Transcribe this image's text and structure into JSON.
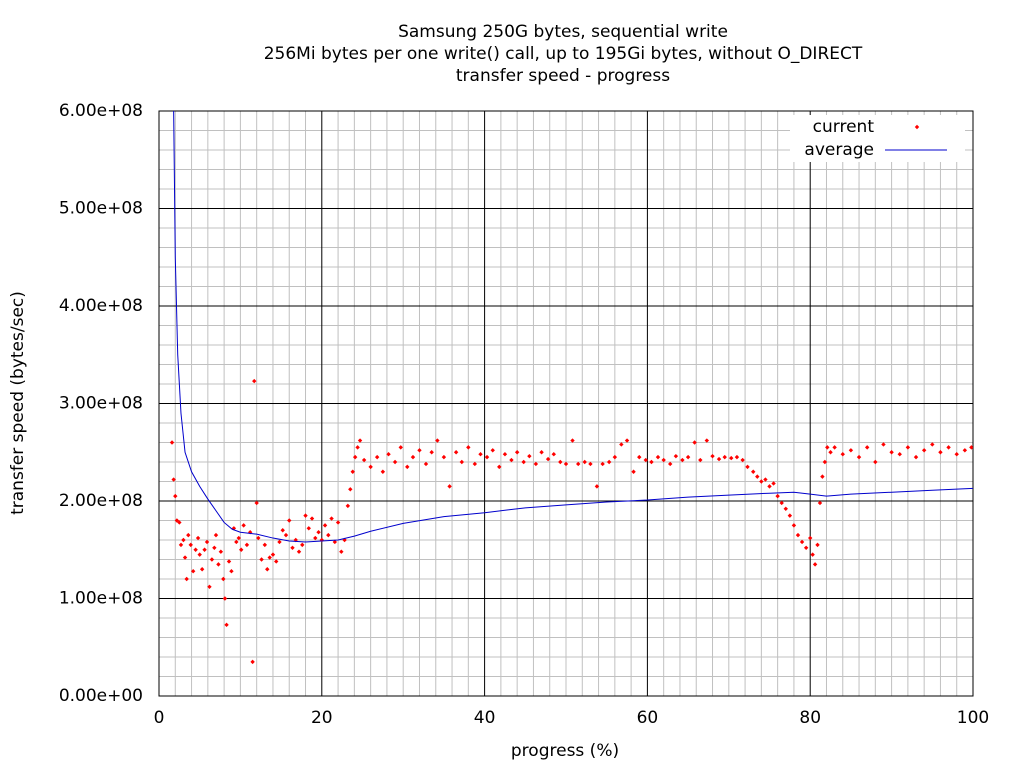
{
  "chart_data": {
    "type": "scatter",
    "title": [
      "Samsung 250G bytes, sequential write",
      "256Mi bytes per one write() call, up to 195Gi bytes, without O_DIRECT",
      "transfer speed - progress"
    ],
    "xlabel": "progress (%)",
    "ylabel": "transfer speed (bytes/sec)",
    "xlim": [
      0,
      100
    ],
    "ylim": [
      0,
      600000000.0
    ],
    "xticks": [
      0,
      20,
      40,
      60,
      80,
      100
    ],
    "yticks": [
      {
        "value": 0,
        "label": "0.00e+00"
      },
      {
        "value": 100000000.0,
        "label": "1.00e+08"
      },
      {
        "value": 200000000.0,
        "label": "2.00e+08"
      },
      {
        "value": 300000000.0,
        "label": "3.00e+08"
      },
      {
        "value": 400000000.0,
        "label": "4.00e+08"
      },
      {
        "value": 500000000.0,
        "label": "5.00e+08"
      },
      {
        "value": 600000000.0,
        "label": "6.00e+08"
      }
    ],
    "grid": true,
    "minor_ticks": {
      "x": 10,
      "y": 5
    },
    "legend": "top-right",
    "series": [
      {
        "name": "current",
        "style": "points",
        "color": "#ff0000",
        "x": [
          1.6,
          1.8,
          2.0,
          2.2,
          2.5,
          2.7,
          3.0,
          3.2,
          3.4,
          3.6,
          3.9,
          4.2,
          4.5,
          4.8,
          5.0,
          5.3,
          5.6,
          5.9,
          6.2,
          6.5,
          6.8,
          7.0,
          7.3,
          7.6,
          7.9,
          8.1,
          8.3,
          8.6,
          8.9,
          9.2,
          9.5,
          9.8,
          10.1,
          10.4,
          10.8,
          11.2,
          11.5,
          11.7,
          12.0,
          12.2,
          12.6,
          13.0,
          13.3,
          13.6,
          14.0,
          14.4,
          14.8,
          15.2,
          15.6,
          16.0,
          16.4,
          16.8,
          17.2,
          17.6,
          18.0,
          18.4,
          18.8,
          19.2,
          19.6,
          20.0,
          20.4,
          20.8,
          21.2,
          21.6,
          22.0,
          22.4,
          22.8,
          23.2,
          23.5,
          23.8,
          24.1,
          24.4,
          24.7,
          25.2,
          26,
          26.8,
          27.5,
          28.2,
          29,
          29.7,
          30.5,
          31.2,
          32,
          32.8,
          33.5,
          34.2,
          35,
          35.7,
          36.5,
          37.2,
          38,
          38.8,
          39.5,
          40.3,
          41,
          41.8,
          42.5,
          43.3,
          44,
          44.8,
          45.5,
          46.3,
          47,
          47.8,
          48.5,
          49.3,
          50,
          50.8,
          51.5,
          52.3,
          53,
          53.8,
          54.5,
          55.3,
          56,
          56.8,
          57.5,
          58.3,
          59,
          59.8,
          60.5,
          61.3,
          62,
          62.8,
          63.5,
          64.3,
          65,
          65.8,
          66.5,
          67.3,
          68,
          68.8,
          69.5,
          70.3,
          71,
          71.7,
          72.3,
          73,
          73.5,
          74,
          74.5,
          75,
          75.5,
          76,
          76.5,
          77,
          77.5,
          78,
          78.5,
          79,
          79.5,
          80,
          80.3,
          80.6,
          80.9,
          81.2,
          81.5,
          81.8,
          82.1,
          82.5,
          83,
          84,
          85,
          86,
          87,
          88,
          89,
          90,
          91,
          92,
          93,
          94,
          95,
          96,
          97,
          98,
          99,
          99.8
        ],
        "values": [
          260000000.0,
          222000000.0,
          205000000.0,
          180000000.0,
          178000000.0,
          155000000.0,
          160000000.0,
          142000000.0,
          120000000.0,
          165000000.0,
          155000000.0,
          128000000.0,
          150000000.0,
          162000000.0,
          145000000.0,
          130000000.0,
          150000000.0,
          158000000.0,
          112000000.0,
          140000000.0,
          152000000.0,
          165000000.0,
          135000000.0,
          148000000.0,
          120000000.0,
          100000000.0,
          73000000.0,
          138000000.0,
          128000000.0,
          172000000.0,
          158000000.0,
          162000000.0,
          150000000.0,
          175000000.0,
          155000000.0,
          168000000.0,
          35000000.0,
          323000000.0,
          198000000.0,
          162000000.0,
          140000000.0,
          155000000.0,
          130000000.0,
          142000000.0,
          145000000.0,
          138000000.0,
          158000000.0,
          170000000.0,
          165000000.0,
          180000000.0,
          152000000.0,
          160000000.0,
          148000000.0,
          155000000.0,
          185000000.0,
          172000000.0,
          182000000.0,
          162000000.0,
          168000000.0,
          160000000.0,
          175000000.0,
          165000000.0,
          182000000.0,
          158000000.0,
          178000000.0,
          148000000.0,
          160000000.0,
          195000000.0,
          212000000.0,
          230000000.0,
          245000000.0,
          255000000.0,
          262000000.0,
          242000000.0,
          235000000.0,
          245000000.0,
          230000000.0,
          248000000.0,
          240000000.0,
          255000000.0,
          235000000.0,
          245000000.0,
          252000000.0,
          238000000.0,
          250000000.0,
          262000000.0,
          245000000.0,
          215000000.0,
          250000000.0,
          240000000.0,
          255000000.0,
          238000000.0,
          248000000.0,
          245000000.0,
          252000000.0,
          235000000.0,
          248000000.0,
          242000000.0,
          250000000.0,
          240000000.0,
          246000000.0,
          238000000.0,
          250000000.0,
          243000000.0,
          248000000.0,
          240000000.0,
          238000000.0,
          262000000.0,
          238000000.0,
          240000000.0,
          238000000.0,
          215000000.0,
          238000000.0,
          240000000.0,
          245000000.0,
          258000000.0,
          262000000.0,
          230000000.0,
          245000000.0,
          242000000.0,
          240000000.0,
          245000000.0,
          242000000.0,
          238000000.0,
          246000000.0,
          242000000.0,
          245000000.0,
          260000000.0,
          242000000.0,
          262000000.0,
          246000000.0,
          243000000.0,
          245000000.0,
          244000000.0,
          245000000.0,
          242000000.0,
          235000000.0,
          230000000.0,
          225000000.0,
          220000000.0,
          222000000.0,
          215000000.0,
          218000000.0,
          205000000.0,
          198000000.0,
          192000000.0,
          185000000.0,
          175000000.0,
          165000000.0,
          158000000.0,
          152000000.0,
          162000000.0,
          145000000.0,
          135000000.0,
          155000000.0,
          198000000.0,
          225000000.0,
          240000000.0,
          255000000.0,
          250000000.0,
          255000000.0,
          248000000.0,
          252000000.0,
          245000000.0,
          255000000.0,
          240000000.0,
          258000000.0,
          250000000.0,
          248000000.0,
          255000000.0,
          245000000.0,
          252000000.0,
          258000000.0,
          250000000.0,
          255000000.0,
          248000000.0,
          252000000.0,
          255000000.0
        ]
      },
      {
        "name": "average",
        "style": "lines",
        "color": "#0000cc",
        "x": [
          1.8,
          2,
          2.3,
          2.7,
          3.2,
          4,
          5,
          6,
          7,
          8,
          9,
          10,
          12,
          14,
          16,
          18,
          20,
          22,
          24,
          26,
          30,
          35,
          40,
          45,
          50,
          55,
          60,
          65,
          70,
          75,
          78,
          80,
          82,
          85,
          90,
          95,
          100
        ],
        "values": [
          600000000.0,
          450000000.0,
          350000000.0,
          290000000.0,
          250000000.0,
          230000000.0,
          215000000.0,
          202000000.0,
          190000000.0,
          178000000.0,
          171000000.0,
          168000000.0,
          166000000.0,
          162000000.0,
          159000000.0,
          158000000.0,
          159000000.0,
          160000000.0,
          164000000.0,
          169000000.0,
          177000000.0,
          184000000.0,
          188000000.0,
          193000000.0,
          196000000.0,
          199000000.0,
          201000000.0,
          204000000.0,
          206000000.0,
          208000000.0,
          209000000.0,
          207000000.0,
          205000000.0,
          207000000.0,
          209000000.0,
          211000000.0,
          213000000.0
        ]
      }
    ]
  }
}
